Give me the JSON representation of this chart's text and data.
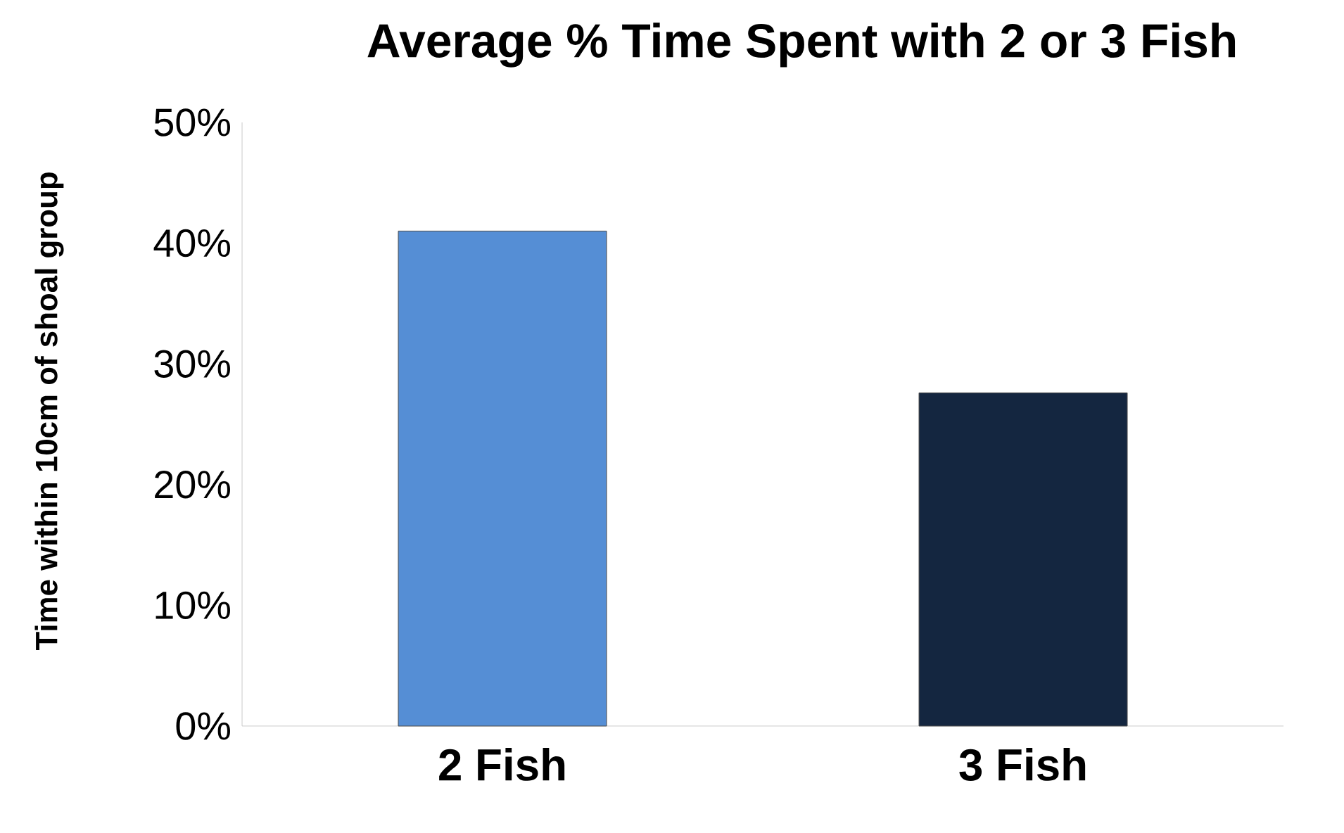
{
  "chart_data": {
    "type": "bar",
    "title": "Average % Time Spent with 2 or 3 Fish",
    "ylabel": "Time within 10cm of shoal group",
    "categories": [
      "2 Fish",
      "3 Fish"
    ],
    "values": [
      41,
      27.6
    ],
    "colors": [
      "#558ed5",
      "#142640"
    ],
    "ylim": [
      0,
      50
    ],
    "yticks": [
      {
        "value": 0,
        "label": "0%"
      },
      {
        "value": 10,
        "label": "10%"
      },
      {
        "value": 20,
        "label": "20%"
      },
      {
        "value": 30,
        "label": "30%"
      },
      {
        "value": 40,
        "label": "40%"
      },
      {
        "value": 50,
        "label": "50%"
      }
    ]
  }
}
